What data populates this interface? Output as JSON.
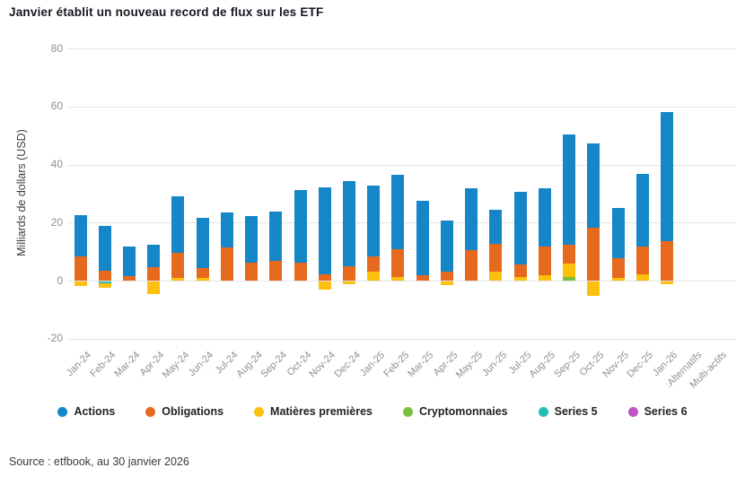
{
  "title": "Janvier établit un nouveau record de flux sur les ETF",
  "source": "Source : etfbook, au 30 janvier 2026",
  "y_axis": {
    "label": "Milliards de dollars (USD)",
    "ticks": [
      80,
      60,
      40,
      20,
      0,
      -20
    ]
  },
  "chart_data": {
    "type": "bar",
    "stacked": true,
    "title": "Janvier établit un nouveau record de flux sur les ETF",
    "xlabel": "",
    "ylabel": "Milliards de dollars (USD)",
    "ylim": [
      -20,
      80
    ],
    "grid": "horizontal",
    "legend_position": "bottom",
    "categories": [
      "Jan-24",
      "Feb-24",
      "Mar-24",
      "Apr-24",
      "May-24",
      "Jun-24",
      "Jul-24",
      "Aug-24",
      "Sep-24",
      "Oct-24",
      "Nov-24",
      "Dec-24",
      "Jan-25",
      "Feb-25",
      "Mar-25",
      "Apr-25",
      "May-25",
      "Jun-25",
      "Jul-25",
      "Aug-25",
      "Sep-25",
      "Oct-25",
      "Nov-25",
      "Dec-25",
      "Jan-26",
      ":Alternatifs",
      "Multi-actifs"
    ],
    "series": [
      {
        "name": "Actions",
        "color": "#1587c8",
        "values": [
          14.5,
          15.4,
          10.2,
          7.7,
          19.6,
          17.3,
          12.1,
          16.2,
          17.1,
          25.0,
          29.8,
          29.3,
          24.6,
          25.8,
          25.7,
          17.4,
          21.3,
          11.6,
          25.1,
          20.3,
          38.0,
          28.9,
          17.3,
          25.3,
          44.5,
          0,
          0
        ]
      },
      {
        "name": "Obligations",
        "color": "#e7691d",
        "values": [
          8.2,
          3.4,
          1.4,
          4.6,
          8.5,
          3.3,
          11.5,
          6.1,
          6.8,
          6.3,
          2.2,
          5.0,
          5.0,
          9.5,
          1.9,
          3.2,
          10.4,
          9.7,
          4.5,
          9.9,
          6.5,
          18.3,
          6.6,
          9.3,
          13.6,
          0,
          0
        ]
      },
      {
        "name": "Matières premières",
        "color": "#fdc00d",
        "values": [
          -1.5,
          -1.7,
          0,
          -4.4,
          1.0,
          1.0,
          0,
          0,
          0,
          0,
          -2.8,
          -0.9,
          3.2,
          1.3,
          0,
          -1.2,
          0,
          3.1,
          1.1,
          1.7,
          4.8,
          -5.0,
          1.0,
          2.3,
          -1.0,
          0,
          0
        ]
      },
      {
        "name": "Cryptomonnaies",
        "color": "#7cbf3e",
        "values": [
          0,
          0,
          0,
          0,
          0,
          0,
          0,
          0,
          0,
          0,
          0,
          0,
          0,
          0,
          0,
          0,
          0,
          0,
          0,
          0,
          1.2,
          0,
          0,
          0,
          0,
          0,
          0
        ]
      },
      {
        "name": "Series 5",
        "color": "#27bcb5",
        "values": [
          0,
          -0.5,
          0,
          0,
          0,
          0,
          0,
          0,
          0,
          0,
          0,
          0,
          0,
          0,
          0,
          0,
          0,
          0,
          0,
          0,
          0,
          0,
          0,
          0,
          0,
          0,
          0
        ]
      },
      {
        "name": "Series 6",
        "color": "#c153c5",
        "values": [
          0,
          0,
          0,
          0,
          0,
          0,
          0,
          0,
          0,
          0,
          0,
          0,
          0,
          0,
          0,
          0,
          0,
          0,
          0,
          0,
          0,
          0,
          0,
          0,
          0,
          0,
          0
        ]
      }
    ]
  }
}
